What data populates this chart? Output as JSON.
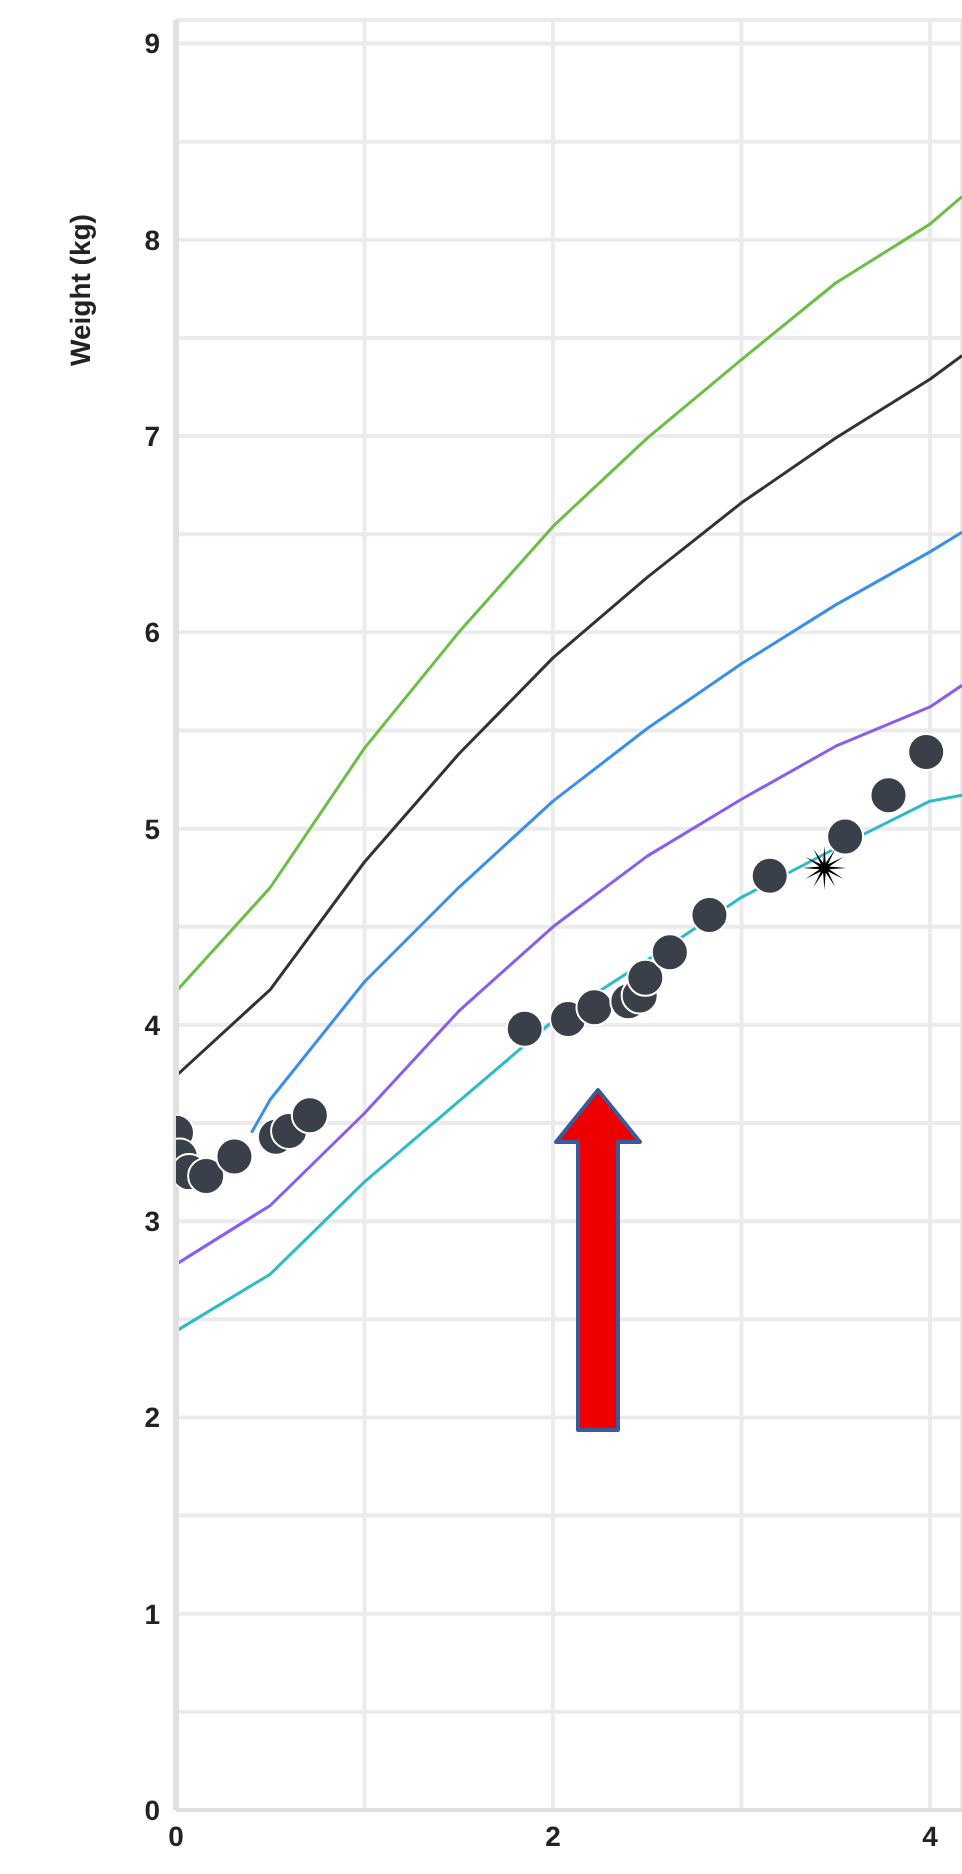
{
  "chart_data": {
    "type": "line",
    "ylabel": "Weight (kg)",
    "xlim": [
      0,
      4.17
    ],
    "xticks": [
      0,
      {
        "value": 1,
        "label": null
      },
      2,
      {
        "value": 3,
        "label": null
      },
      4
    ],
    "ylim": [
      0,
      9.12
    ],
    "yticks": [
      0,
      {
        "value": 0.5,
        "label": null
      },
      1,
      {
        "value": 1.5,
        "label": null
      },
      2,
      {
        "value": 2.5,
        "label": null
      },
      3,
      {
        "value": 3.5,
        "label": null
      },
      4,
      {
        "value": 4.5,
        "label": null
      },
      5,
      {
        "value": 5.5,
        "label": null
      },
      6,
      {
        "value": 6.5,
        "label": null
      },
      7,
      {
        "value": 7.5,
        "label": null
      },
      8,
      {
        "value": 8.5,
        "label": null
      },
      9
    ],
    "grid": true,
    "marker": "none",
    "line_style": "solid",
    "series": [
      {
        "color": "#6abf45",
        "x": [
          0,
          0.5,
          1,
          1.5,
          2,
          2.5,
          3,
          3.5,
          4,
          4.17
        ],
        "values": [
          4.17,
          4.7,
          5.41,
          6.0,
          6.54,
          6.99,
          7.39,
          7.78,
          8.08,
          8.22
        ]
      },
      {
        "color": "#333333",
        "x": [
          0,
          0.5,
          1,
          1.5,
          2,
          2.5,
          3,
          3.5,
          4,
          4.17
        ],
        "values": [
          3.74,
          4.18,
          4.83,
          5.38,
          5.87,
          6.28,
          6.66,
          6.99,
          7.29,
          7.41
        ]
      },
      {
        "color": "#3b8fe8",
        "x": [
          0.4,
          0.5,
          1,
          1.5,
          2,
          2.5,
          3,
          3.5,
          4,
          4.17
        ],
        "values": [
          3.45,
          3.62,
          4.22,
          4.7,
          5.14,
          5.51,
          5.84,
          6.14,
          6.41,
          6.51
        ]
      },
      {
        "color": "#8a5cf0",
        "x": [
          0,
          0.5,
          1,
          1.5,
          2,
          2.5,
          3,
          3.5,
          4,
          4.17
        ],
        "values": [
          2.78,
          3.08,
          3.55,
          4.07,
          4.5,
          4.86,
          5.15,
          5.42,
          5.62,
          5.73
        ]
      },
      {
        "color": "#2bbcc8",
        "x": [
          0,
          0.5,
          1,
          1.5,
          2,
          2.5,
          3,
          3.5,
          4,
          4.17
        ],
        "values": [
          2.44,
          2.73,
          3.2,
          3.61,
          4.02,
          4.33,
          4.65,
          4.9,
          5.14,
          5.17
        ]
      },
      {
        "type": "scatter",
        "color": "#3a4049",
        "marker": "circle",
        "x": [
          0,
          0.02,
          0.07,
          0.16,
          0.31,
          0.53,
          0.6,
          0.71,
          1.85,
          2.08,
          2.22,
          2.4,
          2.46,
          2.49,
          2.62,
          2.83,
          3.15,
          3.55,
          3.78,
          3.98
        ],
        "values": [
          3.45,
          3.33,
          3.25,
          3.23,
          3.33,
          3.43,
          3.46,
          3.54,
          3.98,
          4.03,
          4.09,
          4.12,
          4.15,
          4.24,
          4.37,
          4.56,
          4.76,
          4.96,
          5.17,
          5.39
        ]
      },
      {
        "type": "scatter",
        "color": "#000000",
        "marker": "star",
        "x": [
          3.44
        ],
        "values": [
          4.8
        ]
      }
    ]
  }
}
